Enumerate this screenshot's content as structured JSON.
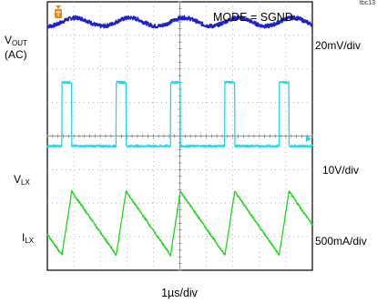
{
  "chart_data": {
    "type": "line",
    "title": "",
    "mode_label": "MODE = SGND",
    "xlabel": "1µs/div",
    "figure_tag": "tbc13",
    "grid": true,
    "x_divisions": 10,
    "y_divisions": 8,
    "x_range_us": [
      0,
      10
    ],
    "switching_period_us": 2.05,
    "duty_cycle": 0.18,
    "series": [
      {
        "name": "VOUT (AC)",
        "label_main": "V",
        "label_sub": "OUT",
        "label_extra": "(AC)",
        "scale": "20mV/div",
        "color": "#2020c8",
        "shape": "ripple",
        "ripple_pp_div": 0.25,
        "center_div": 7.4
      },
      {
        "name": "VLX",
        "label_main": "V",
        "label_sub": "LX",
        "scale": "10V/div",
        "color": "#27d6e6",
        "shape": "pulse",
        "low_div": 3.7,
        "high_div": 5.6
      },
      {
        "name": "ILX",
        "label_main": "I",
        "label_sub": "LX",
        "scale": "500mA/div",
        "color": "#1fd41f",
        "shape": "triangle",
        "min_div": 0.45,
        "max_div": 2.35
      }
    ],
    "markers": {
      "trigger_icon": "trigger-T-marker-icon",
      "trigger_color": "#e8891a",
      "level_marker_icon": "trigger-level-arrow-icon",
      "level_color": "#27d6e6"
    }
  }
}
